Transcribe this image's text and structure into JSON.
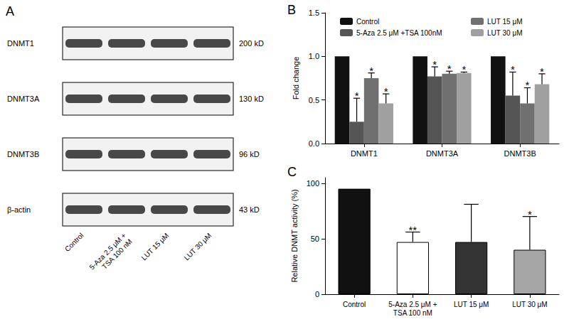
{
  "blot": {
    "title": "A",
    "rows": [
      {
        "label": "DNMT1",
        "size": "200 kD"
      },
      {
        "label": "DNMT3A",
        "size": "130 kD"
      },
      {
        "label": "DNMT3B",
        "size": "96 kD"
      },
      {
        "label": "β-actin",
        "size": "43 kD"
      }
    ],
    "lanes": [
      "Control",
      "5-Aza 2.5 μM +\nTSA 100 nM",
      "LUT 15 μM",
      "LUT 30 μM"
    ]
  },
  "chart_data": [
    {
      "type": "bar",
      "title": "B",
      "categories": [
        "DNMT1",
        "DNMT3A",
        "DNMT3B"
      ],
      "ylabel": "Fold change",
      "ylim": [
        0,
        1.5
      ],
      "yticks": [
        {
          "value": 0,
          "label": "0.0"
        },
        {
          "value": 0.5,
          "label": "0.5"
        },
        {
          "value": 1,
          "label": "1.0"
        },
        {
          "value": 1.5,
          "label": "1.5"
        }
      ],
      "grid": false,
      "legend": "top",
      "series": [
        {
          "name": "Control",
          "color": "#111111",
          "values": [
            1,
            1,
            1
          ]
        },
        {
          "name": "5-Aza 2.5 μM +TSA 100nM",
          "color": "#555555",
          "values": [
            0.25,
            0.77,
            0.55
          ],
          "errors": [
            0.27,
            0.11,
            0.27
          ],
          "significance": [
            "*",
            "*",
            "*"
          ]
        },
        {
          "name": "LUT 15 μM",
          "color": "#707070",
          "values": [
            0.75,
            0.8,
            0.46
          ],
          "errors": [
            0.06,
            0.03,
            0.18
          ],
          "significance": [
            "*",
            "*",
            "*"
          ]
        },
        {
          "name": "LUT 30 μM",
          "color": "#a0a0a0",
          "values": [
            0.46,
            0.81,
            0.68
          ],
          "errors": [
            0.11,
            0.01,
            0.12
          ],
          "significance": [
            "*",
            "*",
            "*"
          ]
        }
      ]
    },
    {
      "type": "bar",
      "title": "C",
      "categories": [
        "Control",
        "5-Aza 2.5 μM +\nTSA 100 nM",
        "LUT 15 μM",
        "LUT 30 μM"
      ],
      "values": [
        95,
        47,
        47,
        40
      ],
      "errors": [
        null,
        9,
        34,
        30
      ],
      "significance": [
        null,
        "**",
        null,
        "*"
      ],
      "colors": [
        "#111111",
        "#ffffff",
        "#333333",
        "#a6a6a6"
      ],
      "ylabel": "Relative DNMT activity (%)",
      "ylim": [
        0,
        105
      ],
      "yticks": [
        0,
        50,
        100
      ],
      "grid": false
    }
  ]
}
